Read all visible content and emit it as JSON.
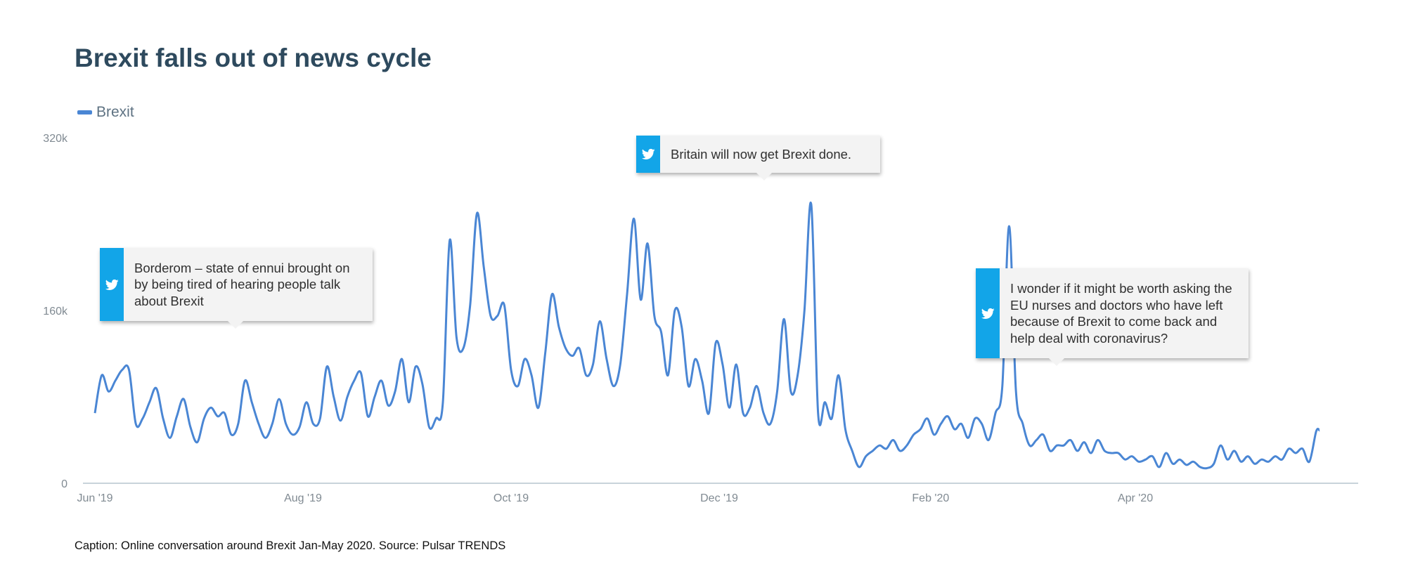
{
  "chart_data": {
    "type": "line",
    "title": "Brexit falls out of news cycle",
    "series": [
      {
        "name": "Brexit",
        "color": "#4a86d4",
        "points": [
          [
            "2019-06-01",
            65000
          ],
          [
            "2019-06-03",
            100000
          ],
          [
            "2019-06-05",
            85000
          ],
          [
            "2019-06-07",
            95000
          ],
          [
            "2019-06-09",
            105000
          ],
          [
            "2019-06-11",
            105000
          ],
          [
            "2019-06-13",
            55000
          ],
          [
            "2019-06-15",
            60000
          ],
          [
            "2019-06-17",
            75000
          ],
          [
            "2019-06-19",
            88000
          ],
          [
            "2019-06-21",
            60000
          ],
          [
            "2019-06-23",
            42000
          ],
          [
            "2019-06-25",
            62000
          ],
          [
            "2019-06-27",
            78000
          ],
          [
            "2019-06-29",
            52000
          ],
          [
            "2019-07-01",
            38000
          ],
          [
            "2019-07-03",
            60000
          ],
          [
            "2019-07-05",
            70000
          ],
          [
            "2019-07-07",
            62000
          ],
          [
            "2019-07-09",
            65000
          ],
          [
            "2019-07-11",
            45000
          ],
          [
            "2019-07-13",
            55000
          ],
          [
            "2019-07-15",
            95000
          ],
          [
            "2019-07-17",
            75000
          ],
          [
            "2019-07-19",
            55000
          ],
          [
            "2019-07-21",
            42000
          ],
          [
            "2019-07-23",
            55000
          ],
          [
            "2019-07-25",
            78000
          ],
          [
            "2019-07-27",
            55000
          ],
          [
            "2019-07-29",
            45000
          ],
          [
            "2019-07-31",
            52000
          ],
          [
            "2019-08-02",
            75000
          ],
          [
            "2019-08-04",
            55000
          ],
          [
            "2019-08-06",
            60000
          ],
          [
            "2019-08-08",
            108000
          ],
          [
            "2019-08-10",
            80000
          ],
          [
            "2019-08-12",
            58000
          ],
          [
            "2019-08-14",
            80000
          ],
          [
            "2019-08-16",
            95000
          ],
          [
            "2019-08-18",
            102000
          ],
          [
            "2019-08-20",
            62000
          ],
          [
            "2019-08-22",
            80000
          ],
          [
            "2019-08-24",
            95000
          ],
          [
            "2019-08-26",
            72000
          ],
          [
            "2019-08-28",
            85000
          ],
          [
            "2019-08-30",
            115000
          ],
          [
            "2019-09-01",
            75000
          ],
          [
            "2019-09-03",
            108000
          ],
          [
            "2019-09-05",
            92000
          ],
          [
            "2019-09-07",
            52000
          ],
          [
            "2019-09-09",
            60000
          ],
          [
            "2019-09-11",
            75000
          ],
          [
            "2019-09-13",
            225000
          ],
          [
            "2019-09-15",
            135000
          ],
          [
            "2019-09-17",
            125000
          ],
          [
            "2019-09-19",
            165000
          ],
          [
            "2019-09-21",
            250000
          ],
          [
            "2019-09-23",
            200000
          ],
          [
            "2019-09-25",
            155000
          ],
          [
            "2019-09-27",
            155000
          ],
          [
            "2019-09-29",
            165000
          ],
          [
            "2019-10-01",
            105000
          ],
          [
            "2019-10-03",
            90000
          ],
          [
            "2019-10-05",
            115000
          ],
          [
            "2019-10-07",
            100000
          ],
          [
            "2019-10-09",
            70000
          ],
          [
            "2019-10-11",
            120000
          ],
          [
            "2019-10-13",
            175000
          ],
          [
            "2019-10-15",
            145000
          ],
          [
            "2019-10-17",
            125000
          ],
          [
            "2019-10-19",
            118000
          ],
          [
            "2019-10-21",
            125000
          ],
          [
            "2019-10-23",
            100000
          ],
          [
            "2019-10-25",
            110000
          ],
          [
            "2019-10-27",
            150000
          ],
          [
            "2019-10-29",
            115000
          ],
          [
            "2019-10-31",
            90000
          ],
          [
            "2019-11-02",
            110000
          ],
          [
            "2019-11-04",
            175000
          ],
          [
            "2019-11-06",
            245000
          ],
          [
            "2019-11-08",
            170000
          ],
          [
            "2019-11-10",
            222000
          ],
          [
            "2019-11-12",
            155000
          ],
          [
            "2019-11-14",
            140000
          ],
          [
            "2019-11-16",
            100000
          ],
          [
            "2019-11-18",
            160000
          ],
          [
            "2019-11-20",
            145000
          ],
          [
            "2019-11-22",
            90000
          ],
          [
            "2019-11-24",
            115000
          ],
          [
            "2019-11-26",
            95000
          ],
          [
            "2019-11-28",
            65000
          ],
          [
            "2019-11-30",
            130000
          ],
          [
            "2019-12-02",
            110000
          ],
          [
            "2019-12-04",
            70000
          ],
          [
            "2019-12-06",
            110000
          ],
          [
            "2019-12-08",
            65000
          ],
          [
            "2019-12-10",
            70000
          ],
          [
            "2019-12-12",
            90000
          ],
          [
            "2019-12-14",
            65000
          ],
          [
            "2019-12-16",
            55000
          ],
          [
            "2019-12-18",
            85000
          ],
          [
            "2019-12-20",
            152000
          ],
          [
            "2019-12-22",
            85000
          ],
          [
            "2019-12-24",
            100000
          ],
          [
            "2019-12-26",
            160000
          ],
          [
            "2019-12-28",
            258000
          ],
          [
            "2019-12-30",
            65000
          ],
          [
            "2020-01-01",
            75000
          ],
          [
            "2020-01-03",
            60000
          ],
          [
            "2020-01-05",
            100000
          ],
          [
            "2020-01-07",
            50000
          ],
          [
            "2020-01-09",
            30000
          ],
          [
            "2020-01-11",
            15000
          ],
          [
            "2020-01-13",
            25000
          ],
          [
            "2020-01-15",
            30000
          ],
          [
            "2020-01-17",
            35000
          ],
          [
            "2020-01-19",
            32000
          ],
          [
            "2020-01-21",
            40000
          ],
          [
            "2020-01-23",
            30000
          ],
          [
            "2020-01-25",
            35000
          ],
          [
            "2020-01-27",
            45000
          ],
          [
            "2020-01-29",
            50000
          ],
          [
            "2020-01-31",
            60000
          ],
          [
            "2020-02-02",
            45000
          ],
          [
            "2020-02-04",
            55000
          ],
          [
            "2020-02-06",
            62000
          ],
          [
            "2020-02-08",
            50000
          ],
          [
            "2020-02-10",
            55000
          ],
          [
            "2020-02-12",
            42000
          ],
          [
            "2020-02-14",
            60000
          ],
          [
            "2020-02-16",
            55000
          ],
          [
            "2020-02-18",
            40000
          ],
          [
            "2020-02-20",
            65000
          ],
          [
            "2020-02-22",
            90000
          ],
          [
            "2020-02-24",
            238000
          ],
          [
            "2020-02-26",
            85000
          ],
          [
            "2020-02-28",
            55000
          ],
          [
            "2020-03-01",
            35000
          ],
          [
            "2020-03-03",
            40000
          ],
          [
            "2020-03-05",
            45000
          ],
          [
            "2020-03-07",
            30000
          ],
          [
            "2020-03-09",
            35000
          ],
          [
            "2020-03-11",
            35000
          ],
          [
            "2020-03-13",
            40000
          ],
          [
            "2020-03-15",
            30000
          ],
          [
            "2020-03-17",
            38000
          ],
          [
            "2020-03-19",
            28000
          ],
          [
            "2020-03-21",
            40000
          ],
          [
            "2020-03-23",
            30000
          ],
          [
            "2020-03-25",
            28000
          ],
          [
            "2020-03-27",
            28000
          ],
          [
            "2020-03-29",
            22000
          ],
          [
            "2020-03-31",
            25000
          ],
          [
            "2020-04-02",
            20000
          ],
          [
            "2020-04-04",
            22000
          ],
          [
            "2020-04-06",
            25000
          ],
          [
            "2020-04-08",
            15000
          ],
          [
            "2020-04-10",
            28000
          ],
          [
            "2020-04-12",
            18000
          ],
          [
            "2020-04-14",
            22000
          ],
          [
            "2020-04-16",
            17000
          ],
          [
            "2020-04-18",
            20000
          ],
          [
            "2020-04-20",
            15000
          ],
          [
            "2020-04-22",
            14000
          ],
          [
            "2020-04-24",
            18000
          ],
          [
            "2020-04-26",
            35000
          ],
          [
            "2020-04-28",
            22000
          ],
          [
            "2020-04-30",
            30000
          ],
          [
            "2020-05-02",
            20000
          ],
          [
            "2020-05-04",
            25000
          ],
          [
            "2020-05-06",
            18000
          ],
          [
            "2020-05-08",
            22000
          ],
          [
            "2020-05-10",
            20000
          ],
          [
            "2020-05-12",
            25000
          ],
          [
            "2020-05-14",
            22000
          ],
          [
            "2020-05-16",
            32000
          ],
          [
            "2020-05-18",
            28000
          ],
          [
            "2020-05-20",
            32000
          ],
          [
            "2020-05-22",
            20000
          ],
          [
            "2020-05-24",
            48000
          ],
          [
            "2020-05-25",
            49000
          ]
        ]
      }
    ],
    "x_axis": {
      "tick_labels": [
        "Jun '19",
        "Aug '19",
        "Oct '19",
        "Dec '19",
        "Feb '20",
        "Apr '20"
      ],
      "tick_dates": [
        "2019-06-01",
        "2019-08-01",
        "2019-10-01",
        "2019-12-01",
        "2020-02-01",
        "2020-04-01"
      ],
      "range": [
        "2019-06-01",
        "2020-06-01"
      ]
    },
    "y_axis": {
      "tick_labels": [
        "0",
        "160k",
        "320k"
      ],
      "tick_values": [
        0,
        160000,
        320000
      ],
      "range": [
        0,
        320000
      ]
    },
    "grid": false,
    "legend": {
      "position": "top-left",
      "items": [
        "Brexit"
      ]
    },
    "annotations": [
      {
        "icon": "twitter-icon",
        "text": "Borderom – state of ennui brought on by being tired of hearing people talk about Brexit"
      },
      {
        "icon": "twitter-icon",
        "text": "Britain will now get Brexit done."
      },
      {
        "icon": "twitter-icon",
        "text": "I wonder if it might be worth asking the EU nurses and doctors who have left because of Brexit to come back and help deal with coronavirus?"
      }
    ]
  },
  "caption": "Caption: Online conversation around Brexit Jan-May 2020. Source: Pulsar TRENDS",
  "colors": {
    "line": "#4a86d4",
    "title": "#2e4a5e",
    "twitter": "#12a5e8",
    "callout_bg": "#f3f3f3",
    "axis": "#c8d3da"
  }
}
